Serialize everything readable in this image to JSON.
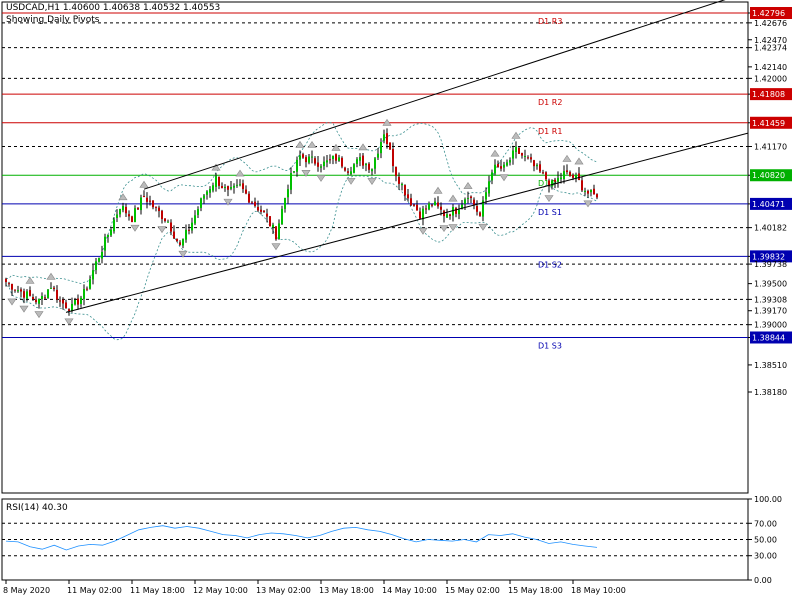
{
  "header": {
    "symbol_line": "USDCAD,H1  1.40600 1.40638 1.40532 1.40553",
    "subtitle": "Showing Daily Pivots"
  },
  "colors": {
    "bull": "#00c000",
    "bear": "#c00000",
    "resistance": "#cc0000",
    "pivot": "#00b000",
    "support": "#0000b0",
    "trendline": "#000000",
    "band": "#3a8f8f",
    "rsi_line": "#1e90ff",
    "frame": "#000000"
  },
  "chart_data": [
    {
      "type": "candlestick",
      "title": "USDCAD,H1",
      "ylim": [
        1.3695,
        1.4293
      ],
      "y_ticks": [
        1.42796,
        1.42676,
        1.4247,
        1.42374,
        1.4214,
        1.42,
        1.41808,
        1.41459,
        1.4117,
        1.4082,
        1.40471,
        1.40182,
        1.39832,
        1.39738,
        1.395,
        1.39308,
        1.3917,
        1.39,
        1.38844,
        1.3851,
        1.3818
      ],
      "y_tick_labels": [
        "1.42796",
        "1.42676",
        "1.42470",
        "1.42374",
        "1.42140",
        "1.42000",
        "1.41808",
        "1.41459",
        "1.41170",
        "1.40820",
        "1.40471",
        "1.40182",
        "1.39832",
        "1.39738",
        "1.39500",
        "1.39308",
        "1.39170",
        "1.39000",
        "1.38844",
        "1.38510",
        "1.38180"
      ],
      "highlighted_ticks": [
        "1.42796",
        "1.41808",
        "1.41459",
        "1.40820",
        "1.40471",
        "1.39832",
        "1.38844"
      ],
      "x_tick_labels": [
        "8 May 2020",
        "11 May 02:00",
        "11 May 18:00",
        "12 May 10:00",
        "13 May 02:00",
        "13 May 18:00",
        "14 May 10:00",
        "15 May 02:00",
        "15 May 18:00",
        "18 May 10:00"
      ],
      "pivots": [
        {
          "name": "D1 R3",
          "value": 1.42796,
          "kind": "resistance"
        },
        {
          "name": "D1 R2",
          "value": 1.41808,
          "kind": "resistance"
        },
        {
          "name": "D1 R1",
          "value": 1.41459,
          "kind": "resistance"
        },
        {
          "name": "D1 P",
          "label": "D1 P",
          "value": 1.4082,
          "kind": "pivot"
        },
        {
          "name": "D1 S1",
          "value": 1.40471,
          "kind": "support"
        },
        {
          "name": "D1 S2",
          "value": 1.39832,
          "kind": "support"
        },
        {
          "name": "D1 S3",
          "value": 1.38844,
          "kind": "support"
        }
      ],
      "pivot_labels": [
        "D1 R3",
        "D1 R2",
        "D1 R1",
        "D1 P",
        "D1 S1",
        "D1 S2",
        "D1 S3"
      ],
      "dashed_levels": [
        1.42676,
        1.42374,
        1.42,
        1.4117,
        1.40182,
        1.39738,
        1.39308,
        1.39
      ],
      "close_anchors": [
        [
          0,
          1.3952
        ],
        [
          6,
          1.3938
        ],
        [
          11,
          1.3928
        ],
        [
          15,
          1.3948
        ],
        [
          18,
          1.3928
        ],
        [
          22,
          1.392
        ],
        [
          26,
          1.3938
        ],
        [
          30,
          1.3975
        ],
        [
          34,
          1.401
        ],
        [
          38,
          1.4045
        ],
        [
          42,
          1.403
        ],
        [
          46,
          1.4057
        ],
        [
          50,
          1.404
        ],
        [
          54,
          1.4026
        ],
        [
          58,
          1.3995
        ],
        [
          62,
          1.4025
        ],
        [
          66,
          1.4058
        ],
        [
          70,
          1.4078
        ],
        [
          74,
          1.406
        ],
        [
          78,
          1.4068
        ],
        [
          82,
          1.405
        ],
        [
          86,
          1.4035
        ],
        [
          90,
          1.401
        ],
        [
          94,
          1.407
        ],
        [
          98,
          1.4105
        ],
        [
          102,
          1.41
        ],
        [
          106,
          1.4096
        ],
        [
          110,
          1.4103
        ],
        [
          114,
          1.409
        ],
        [
          118,
          1.41
        ],
        [
          122,
          1.4092
        ],
        [
          126,
          1.4135
        ],
        [
          130,
          1.4085
        ],
        [
          134,
          1.4055
        ],
        [
          138,
          1.4035
        ],
        [
          142,
          1.4048
        ],
        [
          146,
          1.4035
        ],
        [
          150,
          1.404
        ],
        [
          154,
          1.406
        ],
        [
          158,
          1.4032
        ],
        [
          162,
          1.409
        ],
        [
          166,
          1.409
        ],
        [
          170,
          1.4112
        ],
        [
          174,
          1.41
        ],
        [
          178,
          1.4085
        ],
        [
          182,
          1.407
        ],
        [
          186,
          1.4084
        ],
        [
          190,
          1.4078
        ],
        [
          194,
          1.406
        ],
        [
          197,
          1.4055
        ]
      ],
      "trend_channel": {
        "upper": [
          [
            46,
            1.4065
          ],
          [
            197,
            1.4245
          ]
        ],
        "lower": [
          [
            20,
            1.3915
          ],
          [
            197,
            1.4085
          ]
        ]
      }
    },
    {
      "type": "line",
      "title": "RSI(14) 40.30",
      "ylim": [
        0,
        100
      ],
      "y_ticks": [
        100,
        70,
        50,
        30,
        0
      ],
      "y_tick_labels": [
        "100.00",
        "70.00",
        "50.00",
        "30.00",
        "0.00"
      ],
      "levels": [
        70,
        50,
        30
      ],
      "last_value": 40.3,
      "series": [
        {
          "values": [
            48,
            47,
            41,
            38,
            43,
            37,
            42,
            44,
            43,
            48,
            55,
            62,
            65,
            67,
            64,
            66,
            64,
            60,
            56,
            55,
            52,
            56,
            58,
            57,
            55,
            52,
            55,
            60,
            64,
            65,
            62,
            60,
            56,
            51,
            47,
            50,
            49,
            48,
            50,
            47,
            56,
            55,
            57,
            53,
            50,
            45,
            47,
            44,
            42,
            40.3
          ]
        }
      ]
    }
  ]
}
